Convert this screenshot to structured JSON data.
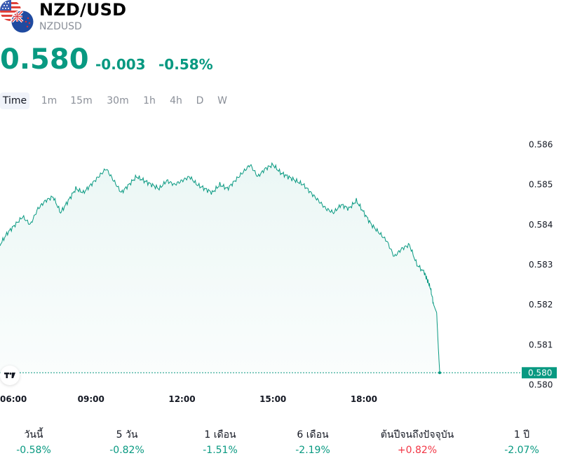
{
  "symbol": {
    "title": "NZD/USD",
    "ticker": "NZDUSD",
    "flags": [
      "us-flag-icon",
      "nz-flag-icon"
    ]
  },
  "quote": {
    "price": "0.580",
    "change": "-0.003",
    "change_percent": "-0.58%",
    "color": "#089981"
  },
  "tabs": [
    {
      "label": "Time",
      "active": true
    },
    {
      "label": "1m"
    },
    {
      "label": "15m"
    },
    {
      "label": "30m"
    },
    {
      "label": "1h"
    },
    {
      "label": "4h"
    },
    {
      "label": "D"
    },
    {
      "label": "W"
    }
  ],
  "chart_data": {
    "type": "area",
    "xlabel": "",
    "ylabel": "",
    "x_tick_labels": [
      "06:00",
      "09:00",
      "12:00",
      "15:00",
      "18:00"
    ],
    "x_tick_hours": [
      6,
      9,
      12,
      15,
      18
    ],
    "xlim_hours": [
      6,
      24.5
    ],
    "ylim": [
      0.5795,
      0.5865
    ],
    "y_ticks": [
      0.58,
      0.581,
      0.582,
      0.583,
      0.584,
      0.585,
      0.586
    ],
    "y_tick_labels": [
      "0.580",
      "0.581",
      "0.582",
      "0.583",
      "0.584",
      "0.585",
      "0.586"
    ],
    "last_price_label": "0.580",
    "last_price": 0.5803,
    "line_color": "#089981",
    "series": [
      {
        "x": [
          6.0,
          6.25,
          6.5,
          6.75,
          7.0,
          7.25,
          7.5,
          7.75,
          8.0,
          8.25,
          8.5,
          8.75,
          9.0,
          9.25,
          9.5,
          9.75,
          10.0,
          10.25,
          10.5,
          10.75,
          11.0,
          11.25,
          11.5,
          11.75,
          12.0,
          12.25,
          12.5,
          12.75,
          13.0,
          13.25,
          13.5,
          13.75,
          14.0,
          14.25,
          14.5,
          14.75,
          15.0,
          15.25,
          15.5,
          15.75,
          16.0,
          16.25,
          16.5,
          16.75,
          17.0,
          17.25,
          17.5,
          17.75,
          18.0,
          18.25,
          18.5,
          18.75,
          19.0,
          19.25,
          19.5,
          19.75,
          20.0,
          20.1,
          20.2,
          20.3,
          20.4,
          20.45,
          20.5
        ],
        "values": [
          0.5835,
          0.5838,
          0.584,
          0.5842,
          0.584,
          0.5844,
          0.5846,
          0.5847,
          0.5843,
          0.5846,
          0.5849,
          0.5848,
          0.585,
          0.5852,
          0.5854,
          0.5851,
          0.5848,
          0.585,
          0.5852,
          0.5851,
          0.585,
          0.5849,
          0.5851,
          0.585,
          0.5851,
          0.5852,
          0.585,
          0.5849,
          0.5848,
          0.585,
          0.5849,
          0.5851,
          0.5853,
          0.5855,
          0.5852,
          0.5854,
          0.5855,
          0.5853,
          0.5852,
          0.5851,
          0.585,
          0.5848,
          0.5846,
          0.5844,
          0.5843,
          0.5845,
          0.5844,
          0.5846,
          0.5843,
          0.584,
          0.5838,
          0.5836,
          0.5832,
          0.5834,
          0.5835,
          0.583,
          0.5828,
          0.5826,
          0.5824,
          0.582,
          0.5818,
          0.581,
          0.5803
        ]
      }
    ]
  },
  "performance": [
    {
      "label": "วันนี้",
      "value": "-0.58%",
      "color": "#089981"
    },
    {
      "label": "5 วัน",
      "value": "-0.82%",
      "color": "#089981"
    },
    {
      "label": "1 เดือน",
      "value": "-1.51%",
      "color": "#089981"
    },
    {
      "label": "6 เดือน",
      "value": "-2.19%",
      "color": "#089981"
    },
    {
      "label": "ต้นปีจนถึงปัจจุบัน",
      "value": "+0.82%",
      "color": "#f23645"
    },
    {
      "label": "1 ปี",
      "value": "-2.07%",
      "color": "#089981"
    }
  ],
  "logo_icon": "tradingview-logo-icon"
}
